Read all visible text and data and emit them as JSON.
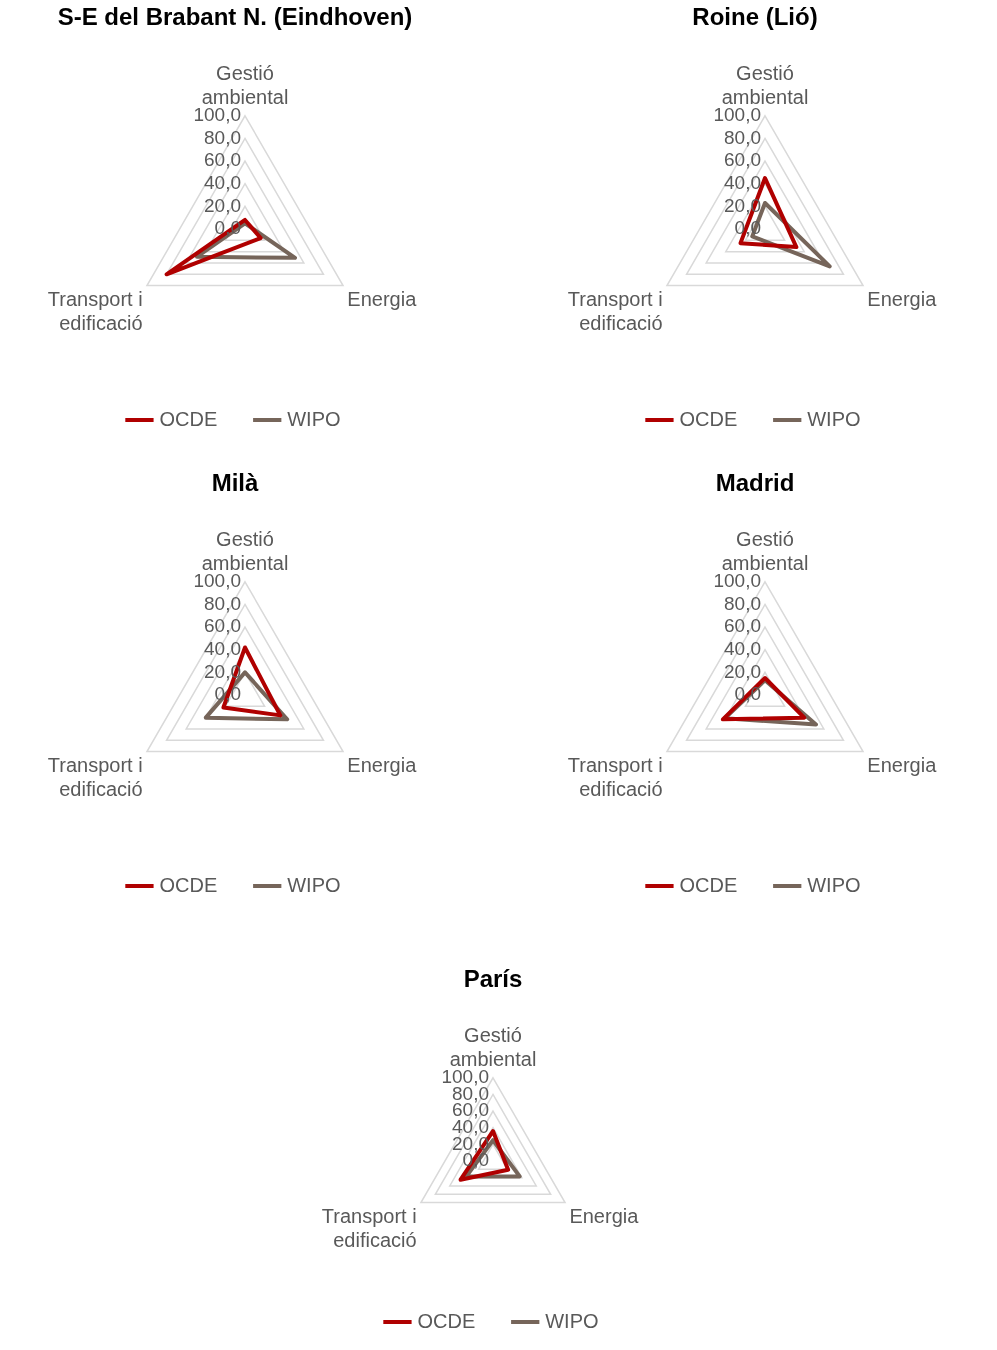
{
  "chart_data": [
    {
      "type": "radar",
      "title": "S-E del Brabant N. (Eindhoven)",
      "categories": [
        "Gestió ambiental",
        "Energia",
        "Transport i edificació"
      ],
      "ylim": [
        0,
        100
      ],
      "yticks": [
        {
          "value": 0,
          "label": "0,0"
        },
        {
          "value": 20,
          "label": "20,0"
        },
        {
          "value": 40,
          "label": "40,0"
        },
        {
          "value": 60,
          "label": "60,0"
        },
        {
          "value": 80,
          "label": "80,0"
        },
        {
          "value": 100,
          "label": "100,0"
        }
      ],
      "grid": true,
      "legend": "bottom",
      "series": [
        {
          "name": "OCDE",
          "color": "#b00000",
          "values": [
            8,
            16,
            80
          ]
        },
        {
          "name": "WIPO",
          "color": "#76655a",
          "values": [
            5,
            51,
            49
          ]
        }
      ]
    },
    {
      "type": "radar",
      "title": "Roine (Lió)",
      "categories": [
        "Gestió ambiental",
        "Energia",
        "Transport i edificació"
      ],
      "ylim": [
        0,
        100
      ],
      "yticks": [
        {
          "value": 0,
          "label": "0,0"
        },
        {
          "value": 20,
          "label": "20,0"
        },
        {
          "value": 40,
          "label": "40,0"
        },
        {
          "value": 60,
          "label": "60,0"
        },
        {
          "value": 80,
          "label": "80,0"
        },
        {
          "value": 100,
          "label": "100,0"
        }
      ],
      "grid": true,
      "legend": "bottom",
      "series": [
        {
          "name": "OCDE",
          "color": "#b00000",
          "values": [
            45,
            32,
            25
          ]
        },
        {
          "name": "WIPO",
          "color": "#76655a",
          "values": [
            23,
            66,
            13
          ]
        }
      ]
    },
    {
      "type": "radar",
      "title": "Milà",
      "categories": [
        "Gestió ambiental",
        "Energia",
        "Transport i edificació"
      ],
      "ylim": [
        0,
        100
      ],
      "yticks": [
        {
          "value": 0,
          "label": "0,0"
        },
        {
          "value": 20,
          "label": "20,0"
        },
        {
          "value": 40,
          "label": "40,0"
        },
        {
          "value": 60,
          "label": "60,0"
        },
        {
          "value": 80,
          "label": "80,0"
        },
        {
          "value": 100,
          "label": "100,0"
        }
      ],
      "grid": true,
      "legend": "bottom",
      "series": [
        {
          "name": "OCDE",
          "color": "#b00000",
          "values": [
            42,
            36,
            22
          ]
        },
        {
          "name": "WIPO",
          "color": "#76655a",
          "values": [
            20,
            43,
            40
          ]
        }
      ]
    },
    {
      "type": "radar",
      "title": "Madrid",
      "categories": [
        "Gestió ambiental",
        "Energia",
        "Transport i edificació"
      ],
      "ylim": [
        0,
        100
      ],
      "yticks": [
        {
          "value": 0,
          "label": "0,0"
        },
        {
          "value": 20,
          "label": "20,0"
        },
        {
          "value": 40,
          "label": "40,0"
        },
        {
          "value": 60,
          "label": "60,0"
        },
        {
          "value": 80,
          "label": "80,0"
        },
        {
          "value": 100,
          "label": "100,0"
        }
      ],
      "grid": true,
      "legend": "bottom",
      "series": [
        {
          "name": "OCDE",
          "color": "#b00000",
          "values": [
            15,
            40,
            43
          ]
        },
        {
          "name": "WIPO",
          "color": "#76655a",
          "values": [
            13,
            52,
            41
          ]
        }
      ]
    },
    {
      "type": "radar",
      "title": "París",
      "categories": [
        "Gestió ambiental",
        "Energia",
        "Transport i edificació"
      ],
      "ylim": [
        0,
        100
      ],
      "yticks": [
        {
          "value": 0,
          "label": "0,0"
        },
        {
          "value": 20,
          "label": "20,0"
        },
        {
          "value": 40,
          "label": "40,0"
        },
        {
          "value": 60,
          "label": "60,0"
        },
        {
          "value": 80,
          "label": "80,0"
        },
        {
          "value": 100,
          "label": "100,0"
        }
      ],
      "grid": true,
      "legend": "bottom",
      "series": [
        {
          "name": "OCDE",
          "color": "#b00000",
          "values": [
            36,
            21,
            45
          ]
        },
        {
          "name": "WIPO",
          "color": "#76655a",
          "values": [
            25,
            37,
            37
          ]
        }
      ]
    }
  ]
}
